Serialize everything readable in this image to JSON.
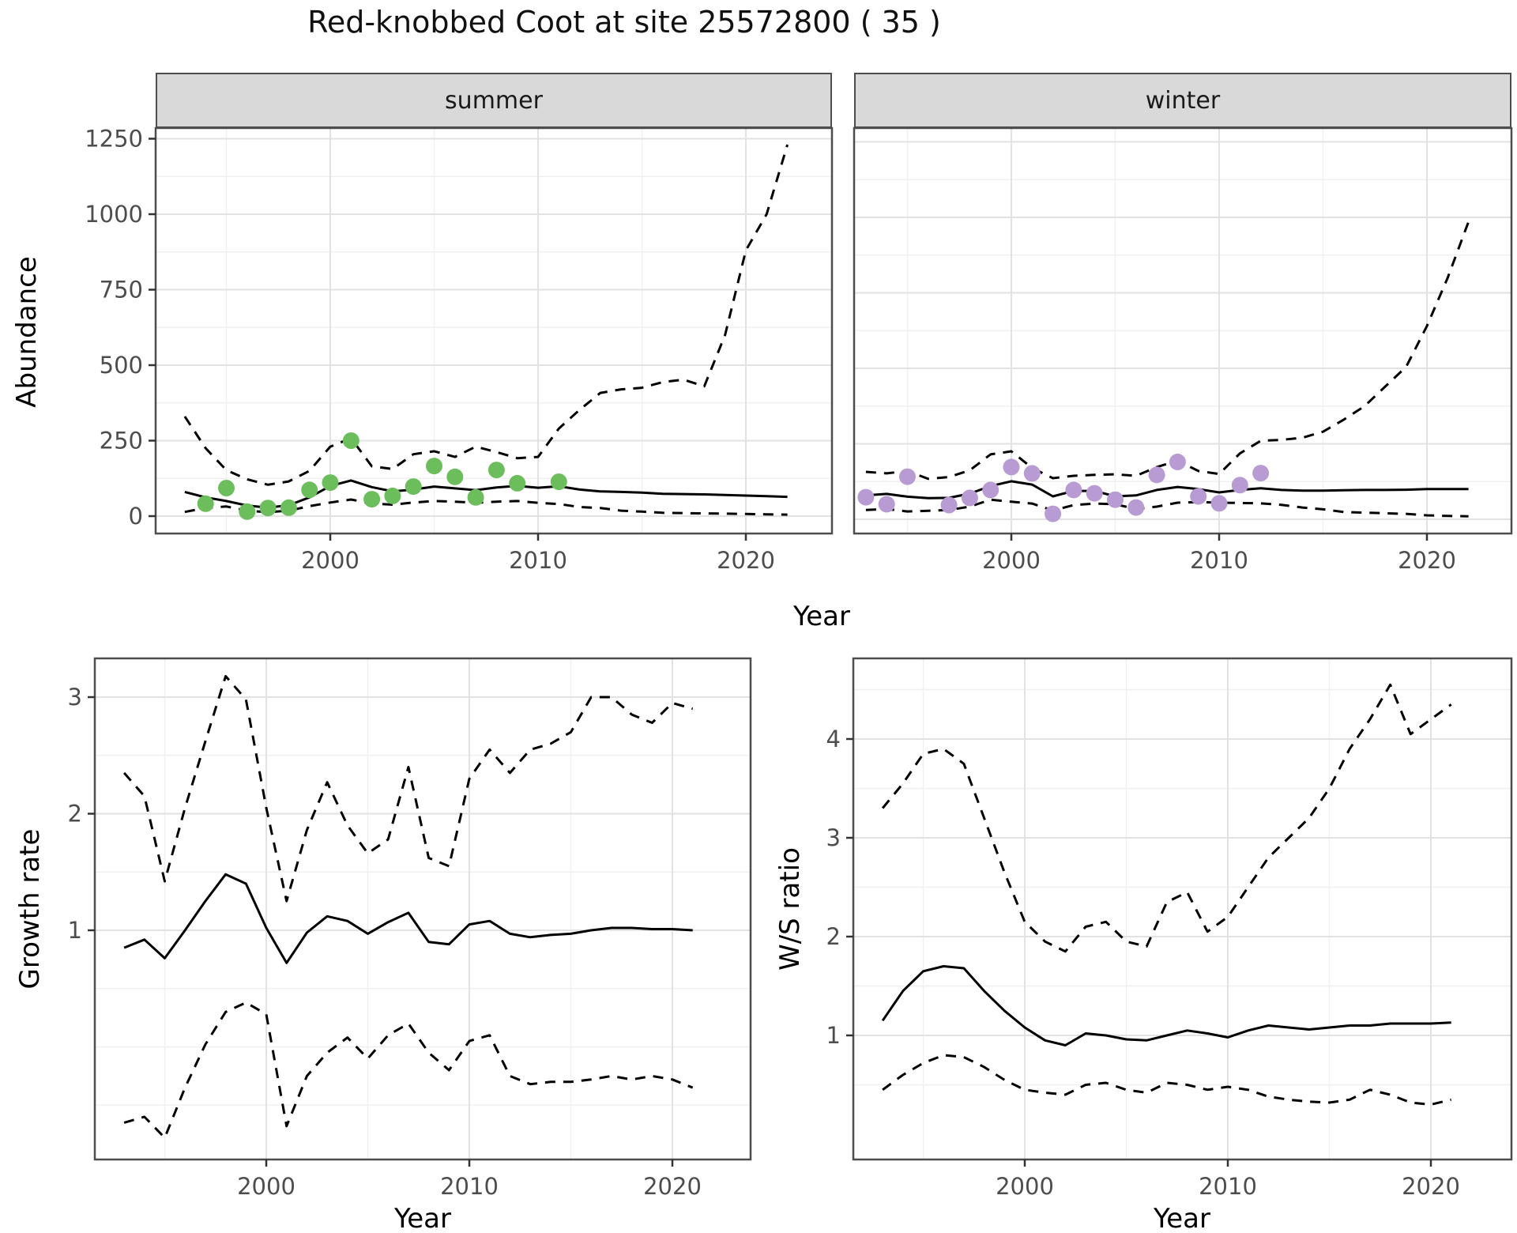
{
  "title": "Red-knobbed Coot at site 25572800 ( 35 )",
  "facets": {
    "summer": "summer",
    "winter": "winter"
  },
  "axis_titles": {
    "abundance": "Abundance",
    "year": "Year",
    "growth_rate": "Growth rate",
    "ws_ratio": "W/S ratio"
  },
  "colors": {
    "summer_points": "#6cbe5d",
    "winter_points": "#b79bd2",
    "median_line": "#000000",
    "ci_line": "#000000",
    "strip_bg": "#d9d9d9",
    "panel_border": "#4d4d4d",
    "grid_major": "#e2e2e2",
    "grid_minor": "#f0f0f0",
    "tick_text": "#4d4d4d"
  },
  "chart_data": [
    {
      "type": "line",
      "facet": "summer",
      "ylabel": "Abundance",
      "xlabel": "Year",
      "xticks": [
        2000,
        2010,
        2020
      ],
      "xminor": [
        1995,
        2005,
        2015
      ],
      "yticks": [
        0,
        250,
        500,
        750,
        1000,
        1250
      ],
      "yminor": [
        125,
        375,
        625,
        875,
        1125
      ],
      "ylim": [
        -57,
        1283
      ],
      "xlim": [
        1991.6,
        2024.1
      ],
      "x": [
        1993,
        1994,
        1995,
        1996,
        1997,
        1998,
        1999,
        2000,
        2001,
        2002,
        2003,
        2004,
        2005,
        2006,
        2007,
        2008,
        2009,
        2010,
        2011,
        2012,
        2013,
        2014,
        2015,
        2016,
        2017,
        2018,
        2019,
        2020,
        2021,
        2022
      ],
      "series": [
        {
          "name": "median",
          "style": "solid",
          "values": [
            80,
            62,
            50,
            35,
            28,
            36,
            62,
            100,
            118,
            96,
            82,
            88,
            98,
            92,
            86,
            95,
            100,
            94,
            99,
            88,
            82,
            80,
            78,
            74,
            73,
            72,
            70,
            68,
            66,
            64
          ]
        },
        {
          "name": "upper_ci",
          "style": "dashed",
          "values": [
            330,
            225,
            152,
            122,
            104,
            115,
            150,
            230,
            258,
            165,
            156,
            205,
            215,
            196,
            230,
            212,
            192,
            196,
            290,
            352,
            408,
            420,
            425,
            444,
            452,
            430,
            600,
            880,
            1000,
            1230
          ]
        },
        {
          "name": "lower_ci",
          "style": "dashed",
          "values": [
            14,
            27,
            32,
            18,
            13,
            18,
            33,
            45,
            55,
            42,
            38,
            45,
            50,
            48,
            44,
            48,
            50,
            44,
            40,
            30,
            27,
            18,
            15,
            11,
            10,
            9,
            8,
            7,
            6,
            5
          ]
        }
      ],
      "points": {
        "name": "observed_counts_summer",
        "color": "#6cbe5d",
        "data": [
          [
            1994,
            41
          ],
          [
            1995,
            93
          ],
          [
            1996,
            15
          ],
          [
            1997,
            27
          ],
          [
            1998,
            28
          ],
          [
            1999,
            87
          ],
          [
            2000,
            111
          ],
          [
            2001,
            250
          ],
          [
            2002,
            56
          ],
          [
            2003,
            67
          ],
          [
            2004,
            98
          ],
          [
            2005,
            166
          ],
          [
            2006,
            130
          ],
          [
            2007,
            62
          ],
          [
            2008,
            153
          ],
          [
            2009,
            109
          ],
          [
            2011,
            114
          ]
        ]
      }
    },
    {
      "type": "line",
      "facet": "winter",
      "ylabel": "Abundance",
      "xlabel": "Year",
      "xticks": [
        2000,
        2010,
        2020
      ],
      "xminor": [
        1995,
        2005,
        2015
      ],
      "yticks": [
        0,
        250,
        500,
        750,
        1000,
        1250
      ],
      "yminor": [
        125,
        375,
        625,
        875,
        1125
      ],
      "ylim": [
        -47,
        1299
      ],
      "xlim": [
        1992.4,
        2024.1
      ],
      "x": [
        1993,
        1994,
        1995,
        1996,
        1997,
        1998,
        1999,
        2000,
        2001,
        2002,
        2003,
        2004,
        2005,
        2006,
        2007,
        2008,
        2009,
        2010,
        2011,
        2012,
        2013,
        2014,
        2015,
        2016,
        2017,
        2018,
        2019,
        2020,
        2021,
        2022
      ],
      "series": [
        {
          "name": "median",
          "style": "solid",
          "values": [
            79,
            84,
            75,
            70,
            71,
            85,
            110,
            126,
            115,
            76,
            94,
            94,
            76,
            79,
            97,
            107,
            100,
            89,
            97,
            103,
            97,
            95,
            95,
            96,
            97,
            97,
            98,
            100,
            100,
            100
          ]
        },
        {
          "name": "upper_ci",
          "style": "dashed",
          "values": [
            157,
            152,
            160,
            134,
            140,
            162,
            215,
            225,
            170,
            136,
            144,
            147,
            149,
            144,
            173,
            194,
            160,
            150,
            218,
            260,
            263,
            270,
            290,
            330,
            375,
            440,
            505,
            640,
            800,
            985
          ]
        },
        {
          "name": "lower_ci",
          "style": "dashed",
          "values": [
            31,
            34,
            26,
            28,
            31,
            42,
            65,
            58,
            52,
            29,
            47,
            52,
            50,
            34,
            42,
            55,
            57,
            55,
            54,
            53,
            48,
            39,
            33,
            24,
            22,
            20,
            18,
            13,
            11,
            10
          ]
        }
      ],
      "points": {
        "name": "observed_counts_winter",
        "color": "#b79bd2",
        "data": [
          [
            1993,
            73
          ],
          [
            1994,
            50
          ],
          [
            1995,
            141
          ],
          [
            1997,
            47
          ],
          [
            1998,
            71
          ],
          [
            1999,
            97
          ],
          [
            2000,
            173
          ],
          [
            2001,
            152
          ],
          [
            2002,
            18
          ],
          [
            2003,
            97
          ],
          [
            2004,
            86
          ],
          [
            2005,
            65
          ],
          [
            2006,
            39
          ],
          [
            2007,
            147
          ],
          [
            2008,
            190
          ],
          [
            2009,
            76
          ],
          [
            2010,
            53
          ],
          [
            2011,
            113
          ],
          [
            2012,
            153
          ]
        ]
      }
    },
    {
      "type": "line",
      "facet": "",
      "ylabel": "Growth rate",
      "xlabel": "Year",
      "xticks": [
        2000,
        2010,
        2020
      ],
      "xminor": [
        1995,
        2005,
        2015
      ],
      "yticks": [
        1,
        2,
        3
      ],
      "yminor": [
        -0.5,
        0,
        0.5,
        1.5,
        2.5
      ],
      "ylim": [
        -0.97,
        3.33
      ],
      "xlim": [
        1991.6,
        2023.9
      ],
      "x": [
        1993,
        1994,
        1995,
        1996,
        1997,
        1998,
        1999,
        2000,
        2001,
        2002,
        2003,
        2004,
        2005,
        2006,
        2007,
        2008,
        2009,
        2010,
        2011,
        2012,
        2013,
        2014,
        2015,
        2016,
        2017,
        2018,
        2019,
        2020,
        2021
      ],
      "series": [
        {
          "name": "median",
          "style": "solid",
          "values": [
            0.85,
            0.92,
            0.76,
            1.0,
            1.25,
            1.48,
            1.4,
            1.02,
            0.72,
            0.98,
            1.12,
            1.08,
            0.97,
            1.07,
            1.15,
            0.9,
            0.88,
            1.05,
            1.08,
            0.97,
            0.94,
            0.96,
            0.97,
            1.0,
            1.02,
            1.02,
            1.01,
            1.01,
            1.0
          ]
        },
        {
          "name": "upper_ci",
          "style": "dashed",
          "values": [
            2.35,
            2.15,
            1.42,
            2.05,
            2.62,
            3.18,
            2.98,
            2.05,
            1.25,
            1.86,
            2.27,
            1.9,
            1.66,
            1.78,
            2.4,
            1.62,
            1.55,
            2.3,
            2.55,
            2.35,
            2.55,
            2.6,
            2.7,
            3.0,
            3.0,
            2.85,
            2.78,
            2.95,
            2.9
          ]
        },
        {
          "name": "lower_ci",
          "style": "dashed",
          "values": [
            -0.65,
            -0.6,
            -0.78,
            -0.35,
            0.02,
            0.3,
            0.38,
            0.28,
            -0.68,
            -0.25,
            -0.05,
            0.08,
            -0.1,
            0.1,
            0.2,
            -0.05,
            -0.2,
            0.05,
            0.1,
            -0.25,
            -0.32,
            -0.3,
            -0.3,
            -0.28,
            -0.25,
            -0.28,
            -0.25,
            -0.28,
            -0.35
          ]
        }
      ],
      "points": null
    },
    {
      "type": "line",
      "facet": "",
      "ylabel": "W/S ratio",
      "xlabel": "Year",
      "xticks": [
        2000,
        2010,
        2020
      ],
      "xminor": [
        1995,
        2005,
        2015
      ],
      "yticks": [
        1,
        2,
        3,
        4
      ],
      "yminor": [
        0.5,
        1.5,
        2.5,
        3.5,
        4.5
      ],
      "ylim": [
        -0.26,
        4.82
      ],
      "xlim": [
        1991.6,
        2024.0
      ],
      "x": [
        1993,
        1994,
        1995,
        1996,
        1997,
        1998,
        1999,
        2000,
        2001,
        2002,
        2003,
        2004,
        2005,
        2006,
        2007,
        2008,
        2009,
        2010,
        2011,
        2012,
        2013,
        2014,
        2015,
        2016,
        2017,
        2018,
        2019,
        2020,
        2021
      ],
      "series": [
        {
          "name": "median",
          "style": "solid",
          "values": [
            1.15,
            1.45,
            1.65,
            1.7,
            1.68,
            1.45,
            1.25,
            1.08,
            0.95,
            0.9,
            1.02,
            1.0,
            0.96,
            0.95,
            1.0,
            1.05,
            1.02,
            0.98,
            1.05,
            1.1,
            1.08,
            1.06,
            1.08,
            1.1,
            1.1,
            1.12,
            1.12,
            1.12,
            1.13
          ]
        },
        {
          "name": "upper_ci",
          "style": "dashed",
          "values": [
            3.3,
            3.55,
            3.85,
            3.9,
            3.75,
            3.2,
            2.65,
            2.15,
            1.95,
            1.85,
            2.1,
            2.15,
            1.95,
            1.9,
            2.35,
            2.45,
            2.05,
            2.2,
            2.5,
            2.8,
            3.0,
            3.2,
            3.5,
            3.9,
            4.2,
            4.55,
            4.05,
            4.2,
            4.35
          ]
        },
        {
          "name": "lower_ci",
          "style": "dashed",
          "values": [
            0.45,
            0.6,
            0.72,
            0.8,
            0.78,
            0.68,
            0.55,
            0.45,
            0.42,
            0.4,
            0.5,
            0.52,
            0.45,
            0.42,
            0.52,
            0.5,
            0.45,
            0.48,
            0.45,
            0.38,
            0.35,
            0.33,
            0.32,
            0.35,
            0.45,
            0.4,
            0.32,
            0.3,
            0.35
          ]
        }
      ],
      "points": null
    }
  ]
}
